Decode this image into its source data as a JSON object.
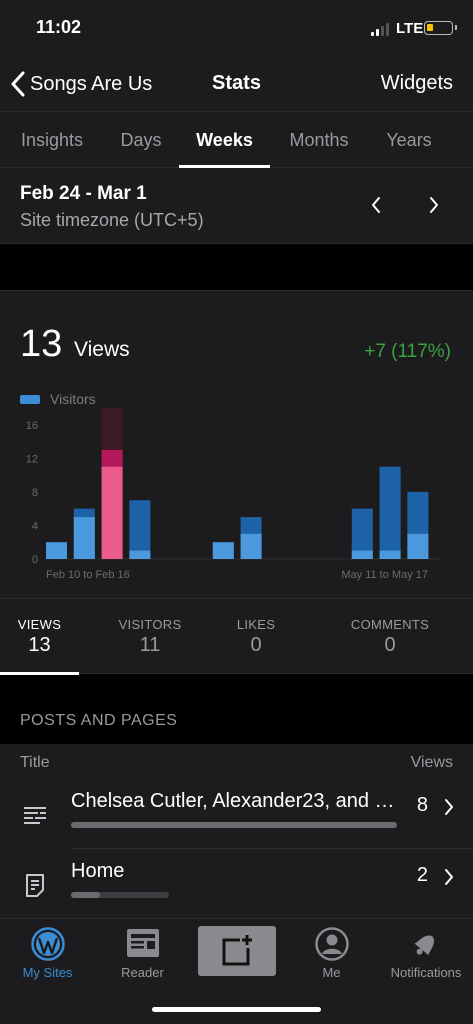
{
  "status": {
    "time": "11:02",
    "network": "LTE",
    "battery_color": "#f5c400"
  },
  "nav": {
    "back_label": "Songs Are Us",
    "title": "Stats",
    "right_label": "Widgets"
  },
  "tabs": [
    {
      "label": "Insights",
      "active": false
    },
    {
      "label": "Days",
      "active": false
    },
    {
      "label": "Weeks",
      "active": true
    },
    {
      "label": "Months",
      "active": false
    },
    {
      "label": "Years",
      "active": false
    }
  ],
  "period": {
    "range": "Feb 24 - Mar 1",
    "timezone": "Site timezone (UTC+5)",
    "prev_icon": "chevron-left-icon",
    "next_icon": "chevron-right-icon"
  },
  "overview": {
    "views_count": "13",
    "views_label": "Views",
    "change": "+7 (117%)",
    "change_color": "#38a03c"
  },
  "chart_data": {
    "type": "bar",
    "legend": [
      {
        "name": "Visitors",
        "color": "#3a8dd6"
      }
    ],
    "categories": [
      "Feb 10 to Feb 16",
      "",
      "",
      "",
      "",
      "",
      "",
      "",
      "",
      "",
      "",
      "",
      "",
      "May 11 to May 17"
    ],
    "x_tick_labels": [
      "Feb 10 to Feb 16",
      "May 11 to May 17"
    ],
    "series": [
      {
        "name": "Views",
        "values": [
          2,
          6,
          13,
          7,
          0,
          0,
          2,
          5,
          0,
          0,
          0,
          6,
          11,
          8
        ]
      },
      {
        "name": "Visitors",
        "values": [
          2,
          5,
          11,
          1,
          0,
          0,
          2,
          3,
          0,
          0,
          0,
          1,
          1,
          3
        ]
      }
    ],
    "selected_index": 2,
    "selected_highlight_value": 18,
    "yticks": [
      0,
      4,
      8,
      12,
      16
    ],
    "ylim": [
      0,
      18
    ],
    "colors": {
      "views": "#1e63a8",
      "visitors": "#4c98dc",
      "selected_views": "#b5195c",
      "selected_visitors": "#eb5b8d",
      "selected_bg": "#3a1b26"
    }
  },
  "summary": [
    {
      "label": "VIEWS",
      "value": "13",
      "active": true
    },
    {
      "label": "VISITORS",
      "value": "11",
      "active": false
    },
    {
      "label": "LIKES",
      "value": "0",
      "active": false
    },
    {
      "label": "COMMENTS",
      "value": "0",
      "active": false
    }
  ],
  "posts": {
    "section_title": "POSTS AND PAGES",
    "col_title": "Title",
    "col_views": "Views",
    "rows": [
      {
        "icon": "post-lines-icon",
        "title": "Chelsea Cutler, Alexander23, and more",
        "views": "8",
        "fill": 1.0
      },
      {
        "icon": "page-icon",
        "title": "Home",
        "views": "2",
        "fill": 0.3
      }
    ]
  },
  "tabbar": [
    {
      "label": "My Sites",
      "icon": "wordpress-icon",
      "active": true
    },
    {
      "label": "Reader",
      "icon": "reader-icon",
      "active": false
    },
    {
      "label": "",
      "icon": "compose-icon",
      "active": false
    },
    {
      "label": "Me",
      "icon": "profile-icon",
      "active": false
    },
    {
      "label": "Notifications",
      "icon": "bell-icon",
      "active": false
    }
  ]
}
